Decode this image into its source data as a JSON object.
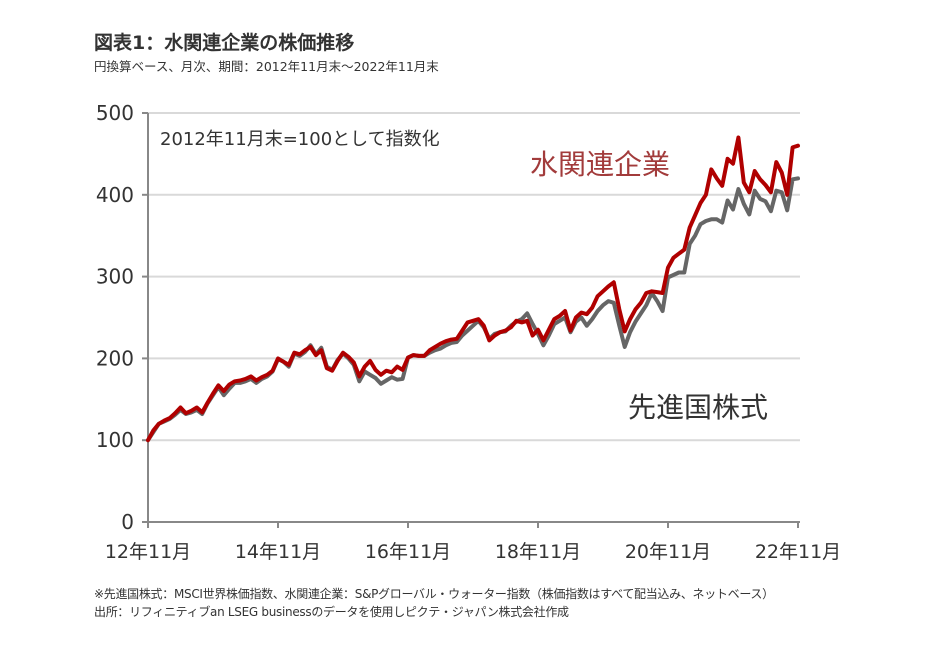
{
  "header": {
    "title": "図表1：水関連企業の株価推移",
    "subtitle": "円換算ベース、月次、期間：2012年11月末～2022年11月末"
  },
  "footer": {
    "note": "※先進国株式：MSCI世界株価指数、水関連企業：S&Pグローバル・ウォーター指数（株価指数はすべて配当込み、ネットベース）",
    "source": "出所：リフィニティブan LSEG businessのデータを使用しピクテ・ジャパン株式会社作成"
  },
  "chart_data": {
    "type": "line",
    "title": "水関連企業の株価推移",
    "annotation": "2012年11月末=100として指数化",
    "xlabel": "",
    "ylabel": "",
    "ylim": [
      0,
      500
    ],
    "yticks": [
      0,
      100,
      200,
      300,
      400,
      500
    ],
    "xticks": [
      {
        "index": 0,
        "label": "12年11月"
      },
      {
        "index": 24,
        "label": "14年11月"
      },
      {
        "index": 48,
        "label": "16年11月"
      },
      {
        "index": 72,
        "label": "18年11月"
      },
      {
        "index": 96,
        "label": "20年11月"
      },
      {
        "index": 120,
        "label": "22年11月"
      }
    ],
    "x_range": [
      "2012-11",
      "2022-11"
    ],
    "grid": true,
    "series": [
      {
        "name": "水関連企業",
        "color": "#b00000",
        "label_color": "#a23b3b",
        "values": [
          100,
          112,
          120,
          124,
          127,
          133,
          140,
          133,
          136,
          140,
          134,
          146,
          157,
          167,
          160,
          168,
          172,
          173,
          175,
          178,
          173,
          177,
          180,
          185,
          200,
          196,
          192,
          207,
          205,
          210,
          214,
          204,
          210,
          188,
          185,
          197,
          207,
          202,
          195,
          178,
          190,
          197,
          186,
          180,
          185,
          183,
          190,
          186,
          201,
          204,
          203,
          203,
          210,
          214,
          218,
          221,
          223,
          224,
          234,
          244,
          246,
          248,
          240,
          222,
          228,
          232,
          234,
          238,
          246,
          244,
          246,
          228,
          235,
          222,
          235,
          248,
          252,
          258,
          234,
          250,
          256,
          254,
          262,
          276,
          282,
          288,
          293,
          260,
          233,
          248,
          260,
          268,
          280,
          282,
          281,
          280,
          311,
          323,
          328,
          333,
          360,
          375,
          390,
          400,
          431,
          420,
          411,
          444,
          438,
          470,
          415,
          403,
          429,
          419,
          412,
          403,
          440,
          427,
          400,
          458,
          460
        ]
      },
      {
        "name": "先進国株式",
        "color": "#666666",
        "label_color": "#333333",
        "values": [
          100,
          110,
          120,
          123,
          126,
          131,
          137,
          132,
          134,
          137,
          132,
          145,
          155,
          165,
          155,
          163,
          170,
          170,
          172,
          175,
          170,
          175,
          178,
          184,
          199,
          196,
          190,
          206,
          203,
          208,
          216,
          205,
          213,
          190,
          186,
          198,
          206,
          200,
          192,
          172,
          184,
          180,
          176,
          169,
          173,
          177,
          174,
          175,
          201,
          204,
          203,
          203,
          207,
          210,
          212,
          216,
          219,
          220,
          228,
          234,
          240,
          246,
          238,
          224,
          230,
          232,
          233,
          240,
          245,
          248,
          255,
          242,
          230,
          216,
          228,
          242,
          246,
          250,
          232,
          245,
          250,
          240,
          248,
          258,
          265,
          270,
          268,
          240,
          214,
          232,
          245,
          255,
          265,
          280,
          270,
          258,
          299,
          302,
          305,
          305,
          340,
          350,
          364,
          368,
          370,
          370,
          366,
          393,
          382,
          407,
          389,
          376,
          405,
          395,
          392,
          380,
          405,
          403,
          381,
          419,
          420
        ]
      }
    ]
  }
}
